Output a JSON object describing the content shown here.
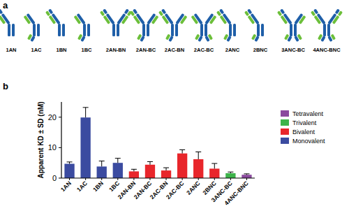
{
  "panel_labels": [
    "a",
    "b"
  ],
  "diagram": {
    "labels": [
      "1AN",
      "1AC",
      "1BN",
      "1BC",
      "2AN-BN",
      "2AN-BC",
      "2AC-BN",
      "2AC-BC",
      "2ANC",
      "2BNC",
      "3ANC-BC",
      "4ANC-BNC"
    ]
  },
  "chart_data": {
    "type": "bar",
    "ylabel": "Apparent KD ± SD (nM)",
    "categories": [
      "1AN",
      "1AC",
      "1BN",
      "1BC",
      "2AN-BN",
      "2AN-BC",
      "2AC-BN",
      "2AC-BC",
      "2ANC",
      "2BNC",
      "3ANC-BC",
      "4ANC-BNC"
    ],
    "series": [
      {
        "name": "Tetravalent",
        "color": "#8b4a9e",
        "values": [
          null,
          null,
          null,
          null,
          null,
          null,
          null,
          null,
          null,
          null,
          null,
          1.1
        ],
        "errors": [
          null,
          null,
          null,
          null,
          null,
          null,
          null,
          null,
          null,
          null,
          null,
          0.3
        ]
      },
      {
        "name": "Trivalent",
        "color": "#3db34a",
        "values": [
          null,
          null,
          null,
          null,
          null,
          null,
          null,
          null,
          null,
          null,
          1.6,
          null
        ],
        "errors": [
          null,
          null,
          null,
          null,
          null,
          null,
          null,
          null,
          null,
          null,
          0.4,
          null
        ]
      },
      {
        "name": "Bivalent",
        "color": "#e8262b",
        "values": [
          null,
          null,
          null,
          null,
          2.2,
          4.4,
          2.5,
          8.1,
          6.2,
          3.1,
          null,
          null
        ],
        "errors": [
          null,
          null,
          null,
          null,
          0.7,
          1.0,
          0.9,
          1.2,
          2.4,
          1.7,
          null,
          null
        ]
      },
      {
        "name": "Monovalent",
        "color": "#3b4ba0",
        "values": [
          4.7,
          19.9,
          3.8,
          5.0,
          null,
          null,
          null,
          null,
          null,
          null,
          null,
          null
        ],
        "errors": [
          0.6,
          3.3,
          1.8,
          1.5,
          null,
          null,
          null,
          null,
          null,
          null,
          null,
          null
        ]
      }
    ],
    "ylim": [
      0,
      25
    ],
    "yticks": [
      0,
      10,
      20
    ],
    "grid": false,
    "legend": "right"
  }
}
